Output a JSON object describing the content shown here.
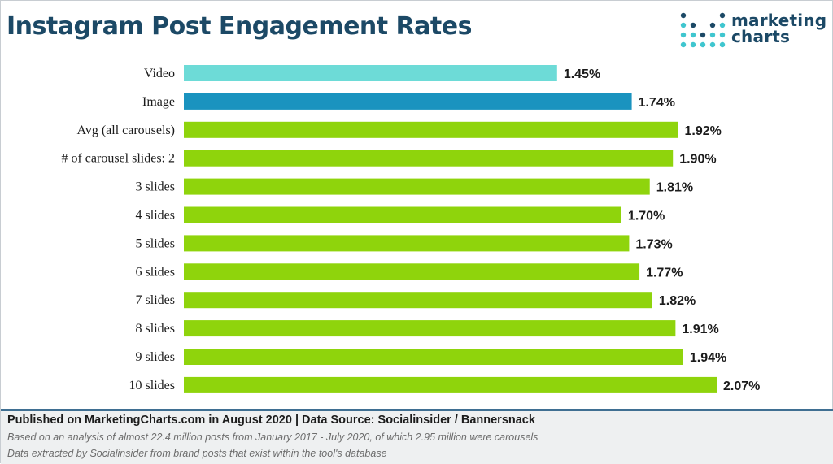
{
  "header": {
    "title": "Instagram Post Engagement Rates",
    "logo_line1": "marketing",
    "logo_line2": "charts"
  },
  "colors": {
    "title": "#1c4966",
    "video_bar": "#6ddbd7",
    "image_bar": "#1a93bf",
    "carousel_bar": "#8fd40c",
    "footer_rule": "#3f6f92",
    "logo_dot_dark": "#1c4966",
    "logo_dot_light": "#3fc6cf"
  },
  "chart_data": {
    "type": "bar",
    "orientation": "horizontal",
    "title": "Instagram Post Engagement Rates",
    "categories": [
      "Video",
      "Image",
      "Avg (all carousels)",
      "# of carousel slides: 2",
      "3 slides",
      "4 slides",
      "5 slides",
      "6 slides",
      "7 slides",
      "8 slides",
      "9 slides",
      "10 slides"
    ],
    "values": [
      1.45,
      1.74,
      1.92,
      1.9,
      1.81,
      1.7,
      1.73,
      1.77,
      1.82,
      1.91,
      1.94,
      2.07
    ],
    "value_labels": [
      "1.45%",
      "1.74%",
      "1.92%",
      "1.90%",
      "1.81%",
      "1.70%",
      "1.73%",
      "1.77%",
      "1.82%",
      "1.91%",
      "1.94%",
      "2.07%"
    ],
    "bar_colors": [
      "#6ddbd7",
      "#1a93bf",
      "#8fd40c",
      "#8fd40c",
      "#8fd40c",
      "#8fd40c",
      "#8fd40c",
      "#8fd40c",
      "#8fd40c",
      "#8fd40c",
      "#8fd40c",
      "#8fd40c"
    ],
    "unit": "%",
    "xlim": [
      0,
      2.07
    ],
    "grid": false,
    "legend": "none"
  },
  "footer": {
    "published": "Published on MarketingCharts.com in August 2020 | Data Source: Socialinsider / Bannersnack",
    "note1": "Based on an analysis of almost 22.4 million posts from January 2017 - July 2020, of which 2.95 million were carousels",
    "note2": "Data extracted by Socialinsider from brand posts that exist within the tool's database"
  }
}
